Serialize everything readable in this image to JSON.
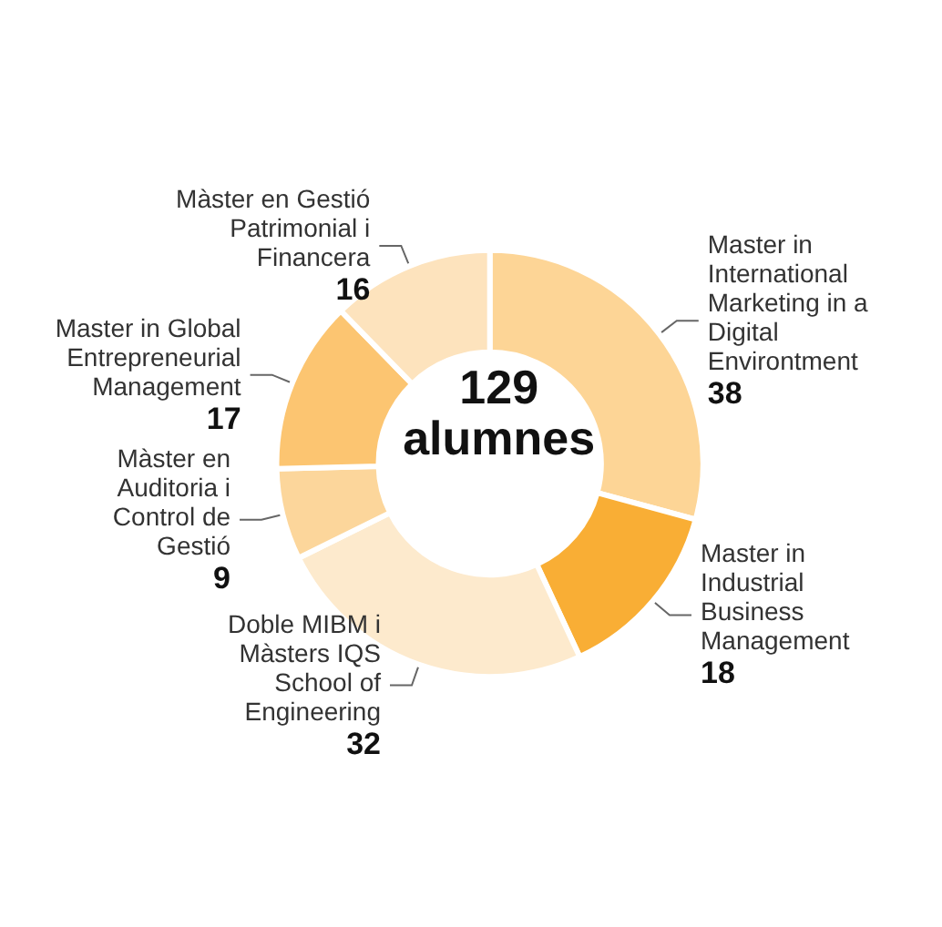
{
  "chart_data": {
    "type": "donut",
    "categories": [
      "Master in International Marketing in a Digital Environtment",
      "Master in Industrial Business Management",
      "Doble MIBM i Màsters IQS School of Engineering",
      "Màster en Auditoria i Control de Gestió",
      "Master in Global Entrepreneurial Management",
      "Màster en Gestió Patrimonial i Financera"
    ],
    "values": [
      38,
      18,
      32,
      9,
      17,
      16
    ],
    "colors": [
      "#fdd596",
      "#f9ae35",
      "#fdeacd",
      "#fcd69b",
      "#fcc571",
      "#fde3bd"
    ],
    "data_labels": true,
    "annotations": [
      "129 alumnes"
    ]
  }
}
